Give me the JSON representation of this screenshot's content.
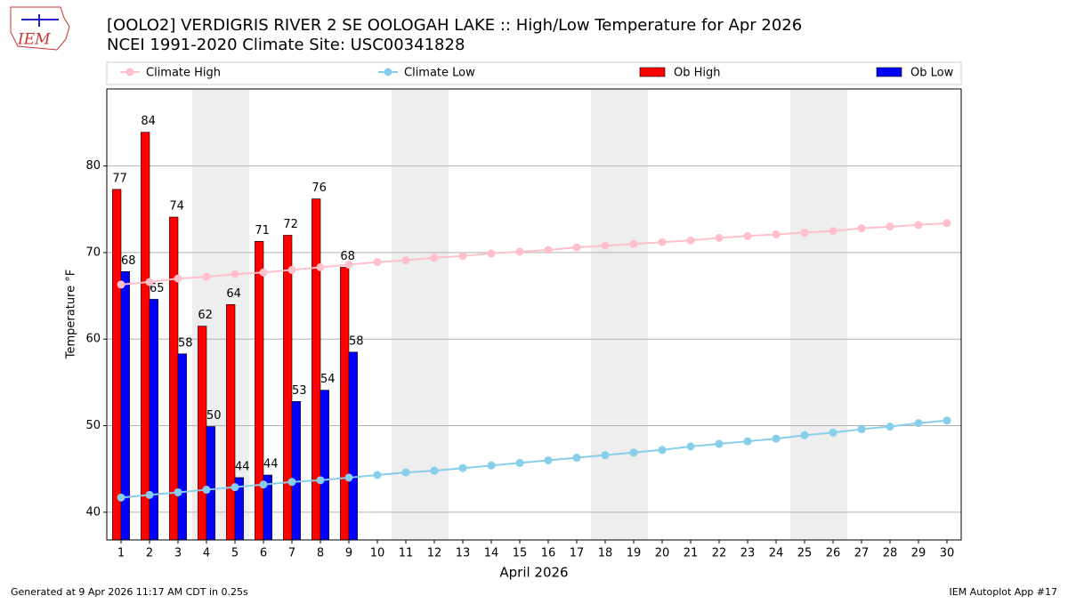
{
  "chart_data": {
    "type": "bar_line",
    "title": "[OOLO2] VERDIGRIS RIVER 2 SE OOLOGAH LAKE :: High/Low Temperature for Apr 2026",
    "subtitle": "NCEI 1991-2020 Climate Site: USC00341828",
    "logo_text": "IEM",
    "xlabel": "April 2026",
    "ylabel": "Temperature °F",
    "footer_left": "Generated at 9 Apr 2026 11:17 AM CDT in 0.25s",
    "footer_right": "IEM Autoplot App #17",
    "x": [
      1,
      2,
      3,
      4,
      5,
      6,
      7,
      8,
      9,
      10,
      11,
      12,
      13,
      14,
      15,
      16,
      17,
      18,
      19,
      20,
      21,
      22,
      23,
      24,
      25,
      26,
      27,
      28,
      29,
      30
    ],
    "xlim": [
      0.5,
      30.5
    ],
    "xticks": [
      1,
      2,
      3,
      4,
      5,
      6,
      7,
      8,
      9,
      10,
      11,
      12,
      13,
      14,
      15,
      16,
      17,
      18,
      19,
      20,
      21,
      22,
      23,
      24,
      25,
      26,
      27,
      28,
      29,
      30
    ],
    "ylim": [
      36.8,
      88.9
    ],
    "yticks": [
      40,
      50,
      60,
      70,
      80
    ],
    "grid": true,
    "shaded_spans": [
      [
        3.5,
        5.5
      ],
      [
        10.5,
        12.5
      ],
      [
        17.5,
        19.5
      ],
      [
        24.5,
        26.5
      ]
    ],
    "series": [
      {
        "name": "Climate High",
        "kind": "line",
        "color": "#ffc0cb",
        "values": [
          66.3,
          66.6,
          67.0,
          67.2,
          67.5,
          67.7,
          68.0,
          68.3,
          68.6,
          68.9,
          69.1,
          69.4,
          69.6,
          69.9,
          70.1,
          70.3,
          70.6,
          70.8,
          71.0,
          71.2,
          71.4,
          71.7,
          71.9,
          72.1,
          72.3,
          72.5,
          72.8,
          73.0,
          73.2,
          73.4
        ]
      },
      {
        "name": "Climate Low",
        "kind": "line",
        "color": "#87ceeb",
        "values": [
          41.7,
          42.0,
          42.3,
          42.6,
          42.9,
          43.2,
          43.5,
          43.7,
          44.0,
          44.3,
          44.6,
          44.8,
          45.1,
          45.4,
          45.7,
          46.0,
          46.3,
          46.6,
          46.9,
          47.2,
          47.6,
          47.9,
          48.2,
          48.5,
          48.9,
          49.2,
          49.6,
          49.9,
          50.3,
          50.6
        ]
      },
      {
        "name": "Ob High",
        "kind": "bar",
        "color": "#ff0000",
        "values": [
          77.3,
          83.9,
          74.1,
          61.5,
          64.0,
          71.3,
          72.0,
          76.2,
          68.3,
          null,
          null,
          null,
          null,
          null,
          null,
          null,
          null,
          null,
          null,
          null,
          null,
          null,
          null,
          null,
          null,
          null,
          null,
          null,
          null,
          null
        ],
        "value_labels": [
          "77",
          "84",
          "74",
          "62",
          "64",
          "71",
          "72",
          "76",
          "68",
          null,
          null,
          null,
          null,
          null,
          null,
          null,
          null,
          null,
          null,
          null,
          null,
          null,
          null,
          null,
          null,
          null,
          null,
          null,
          null,
          null
        ]
      },
      {
        "name": "Ob Low",
        "kind": "bar",
        "color": "#0000ff",
        "values": [
          67.8,
          64.6,
          58.3,
          49.9,
          44.0,
          44.3,
          52.8,
          54.1,
          58.5,
          null,
          null,
          null,
          null,
          null,
          null,
          null,
          null,
          null,
          null,
          null,
          null,
          null,
          null,
          null,
          null,
          null,
          null,
          null,
          null,
          null
        ],
        "value_labels": [
          "68",
          "65",
          "58",
          "50",
          "44",
          "44",
          "53",
          "54",
          "58",
          null,
          null,
          null,
          null,
          null,
          null,
          null,
          null,
          null,
          null,
          null,
          null,
          null,
          null,
          null,
          null,
          null,
          null,
          null,
          null,
          null
        ]
      }
    ]
  }
}
